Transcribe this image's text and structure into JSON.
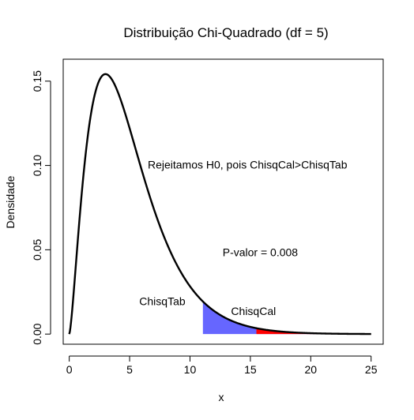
{
  "chart_data": {
    "type": "line",
    "title": "Distribuição Chi-Quadrado  (df = 5)",
    "xlabel": "x",
    "ylabel": "Densidade",
    "xlim": [
      -0.5,
      26.0
    ],
    "ylim": [
      -0.006,
      0.163
    ],
    "x_ticks": [
      0,
      5,
      10,
      15,
      20,
      25
    ],
    "y_ticks": [
      0.0,
      0.05,
      0.1,
      0.15
    ],
    "x_tick_labels": [
      "0",
      "5",
      "10",
      "15",
      "20",
      "25"
    ],
    "y_tick_labels": [
      "0.00",
      "0.05",
      "0.10",
      "0.15"
    ],
    "grid": false,
    "distribution": {
      "name": "chi-squared",
      "df": 5,
      "x_range": [
        0,
        25
      ]
    },
    "shaded_regions": [
      {
        "from": 11.07,
        "to": 25,
        "color": "#6666ff"
      },
      {
        "from": 15.5,
        "to": 25,
        "color": "#ff0000"
      }
    ],
    "annotations": [
      {
        "text": "Rejeitamos H0, pois ChisqCal>ChisqTab",
        "x": 6.5,
        "y": 0.1
      },
      {
        "text": "P-valor = 0.008",
        "x": 12.7,
        "y": 0.048
      },
      {
        "text": "ChisqTab",
        "x": 5.8,
        "y": 0.019
      },
      {
        "text": "ChisqCal",
        "x": 13.4,
        "y": 0.013
      }
    ],
    "colors": {
      "curve": "#000000",
      "critical_region": "#6666ff",
      "pvalue_region": "#ff0000"
    }
  }
}
